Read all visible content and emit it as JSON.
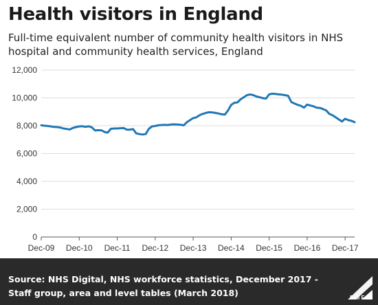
{
  "title": "Health visitors in England",
  "subtitle": "Full-time equivalent number of community health visitors in NHS hospital and community health services, England",
  "source": {
    "label": "Source:",
    "text": "NHS Digital, NHS workforce statistics, December 2017 - Staff group, area and level tables (March 2018)"
  },
  "brand": "Full Fact",
  "colors": {
    "line": "#1f77b4",
    "grid": "#dcdcdc",
    "footer": "#2a2a2a"
  },
  "chart_data": {
    "type": "line",
    "title": "",
    "xlabel": "",
    "ylabel": "",
    "ylim": [
      0,
      12000
    ],
    "yticks": [
      0,
      2000,
      4000,
      6000,
      8000,
      10000,
      12000
    ],
    "ytick_labels": [
      "0",
      "2,000",
      "4,000",
      "6,000",
      "8,000",
      "10,000",
      "12,000"
    ],
    "xticks": [
      "Dec-09",
      "Dec-10",
      "Dec-11",
      "Dec-12",
      "Dec-13",
      "Dec-14",
      "Dec-15",
      "Dec-16",
      "Dec-17"
    ],
    "grid": "horizontal",
    "series": [
      {
        "values": [
          8030,
          8000,
          7980,
          7950,
          7910,
          7900,
          7870,
          7800,
          7770,
          7730,
          7840,
          7900,
          7950,
          7960,
          7920,
          7960,
          7880,
          7660,
          7680,
          7670,
          7550,
          7500,
          7780,
          7800,
          7800,
          7820,
          7830,
          7720,
          7720,
          7760,
          7450,
          7400,
          7370,
          7400,
          7780,
          7950,
          7980,
          8030,
          8050,
          8060,
          8050,
          8090,
          8100,
          8090,
          8070,
          8030,
          8250,
          8400,
          8550,
          8600,
          8750,
          8850,
          8920,
          8970,
          8960,
          8920,
          8880,
          8820,
          8800,
          9100,
          9500,
          9650,
          9680,
          9900,
          10050,
          10200,
          10250,
          10200,
          10100,
          10050,
          9980,
          9950,
          10250,
          10300,
          10280,
          10250,
          10230,
          10200,
          10150,
          9700,
          9600,
          9500,
          9430,
          9300,
          9520,
          9450,
          9400,
          9300,
          9280,
          9200,
          9100,
          8850,
          8750,
          8600,
          8450,
          8300,
          8500,
          8400,
          8350,
          8250
        ]
      }
    ]
  }
}
